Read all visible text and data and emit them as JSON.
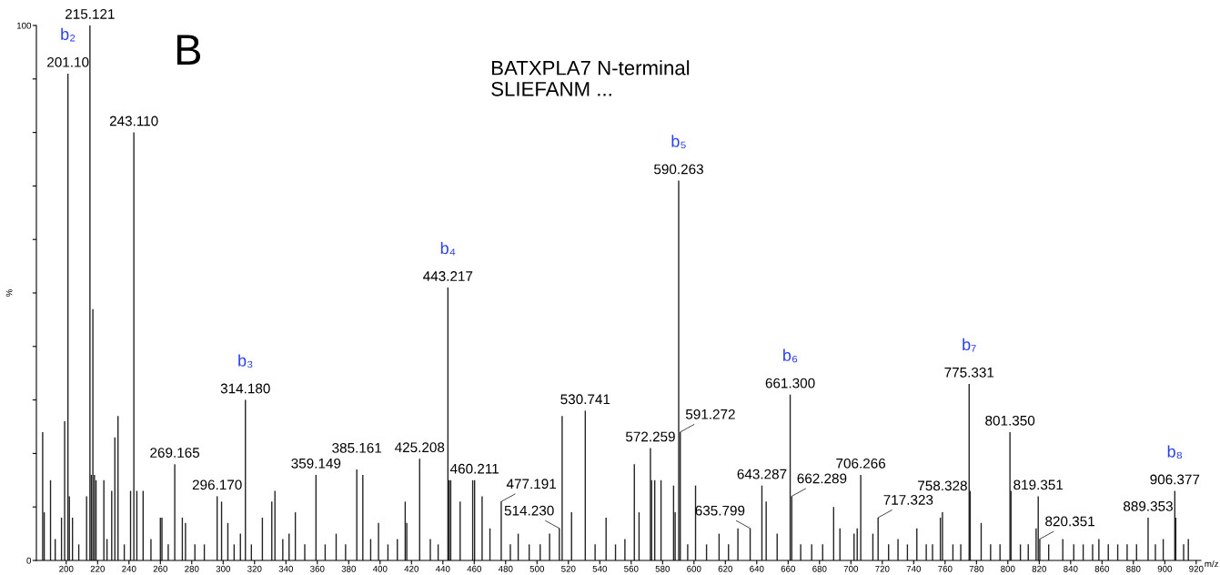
{
  "chart_data": {
    "type": "bar",
    "title": "BATXPLA7 N-terminal\nSLIEFANM ...",
    "xlabel": "m/z",
    "ylabel": "%",
    "color": "#222222",
    "x": [
      185,
      186,
      190,
      193,
      197,
      199,
      201.1,
      202,
      204,
      208,
      213,
      215.121,
      216,
      217,
      218,
      219,
      224,
      226,
      229,
      231,
      233,
      237,
      241,
      243.11,
      245,
      249,
      254,
      260,
      261,
      265,
      269.165,
      274,
      276,
      282,
      288,
      296.17,
      299,
      303,
      307,
      311,
      314.18,
      318,
      325,
      331,
      333,
      338,
      342,
      346,
      352,
      359.149,
      365,
      372,
      378,
      385.161,
      389,
      394,
      399,
      405,
      411,
      416,
      417,
      425.208,
      432,
      437,
      443.217,
      444,
      445,
      451,
      459,
      460.211,
      465,
      470,
      477.191,
      483,
      488,
      495,
      502,
      508,
      514.23,
      516,
      522,
      530.741,
      537,
      544,
      550,
      556,
      562,
      565,
      572.259,
      573,
      575,
      579,
      587,
      588,
      590.263,
      591.272,
      596,
      601,
      608,
      616,
      622,
      628,
      635.799,
      643.287,
      646,
      653,
      661.3,
      662.289,
      668,
      675,
      682,
      689,
      693,
      702,
      704,
      706.266,
      714,
      717.323,
      724,
      730,
      736,
      742,
      748,
      752,
      757,
      758.328,
      765,
      770,
      775.331,
      776,
      783,
      789,
      795,
      801.35,
      802,
      808,
      813,
      818,
      819.351,
      820.351,
      826,
      835,
      842,
      848,
      854,
      858,
      864,
      870,
      876,
      882,
      889.353,
      894,
      899,
      906.377,
      907,
      912,
      915
    ],
    "values": [
      24,
      9,
      15,
      4,
      8,
      26,
      91,
      12,
      8,
      3,
      12,
      100,
      16,
      47,
      16,
      15,
      15,
      4,
      13,
      23,
      27,
      3,
      13,
      80,
      13,
      13,
      4,
      8,
      8,
      3,
      18,
      8,
      7,
      3,
      3,
      12,
      11,
      7,
      3,
      5,
      30,
      3,
      8,
      11,
      13,
      4,
      5,
      9,
      3,
      16,
      3,
      5,
      3,
      17,
      16,
      4,
      7,
      3,
      4,
      11,
      7,
      19,
      4,
      3,
      51,
      15,
      15,
      11,
      15,
      15,
      12,
      6,
      11,
      3,
      5,
      3,
      3,
      5,
      6,
      27,
      9,
      28,
      3,
      8,
      3,
      4,
      18,
      9,
      21,
      15,
      15,
      15,
      14,
      9,
      71,
      24,
      3,
      14,
      3,
      5,
      3,
      6,
      6,
      14,
      11,
      5,
      31,
      12,
      3,
      3,
      3,
      10,
      6,
      5,
      6,
      16,
      5,
      8,
      3,
      4,
      3,
      6,
      3,
      3,
      8,
      9,
      3,
      3,
      33,
      13,
      7,
      3,
      3,
      24,
      13,
      3,
      3,
      6,
      12,
      4,
      3,
      4,
      3,
      3,
      3,
      4,
      3,
      3,
      3,
      3,
      8,
      3,
      4,
      13,
      8,
      3,
      4
    ],
    "xlim": [
      181,
      923
    ],
    "xticks": [
      200,
      220,
      240,
      260,
      280,
      300,
      320,
      340,
      360,
      380,
      400,
      420,
      440,
      460,
      480,
      500,
      520,
      540,
      560,
      580,
      600,
      620,
      640,
      660,
      680,
      700,
      720,
      740,
      760,
      780,
      800,
      820,
      840,
      860,
      880,
      900,
      920
    ],
    "ylim": [
      0,
      100
    ],
    "yticks": [
      0,
      {
        "value": 10,
        "label": null
      },
      {
        "value": 20,
        "label": null
      },
      {
        "value": 30,
        "label": null
      },
      {
        "value": 40,
        "label": null
      },
      {
        "value": 50,
        "label": null
      },
      {
        "value": 60,
        "label": null
      },
      {
        "value": 70,
        "label": null
      },
      {
        "value": 80,
        "label": null
      },
      {
        "value": 90,
        "label": null
      },
      100
    ],
    "annotations": [
      "B",
      {
        "text": "b₂",
        "x": 201.1,
        "y": 91
      },
      {
        "text": "201.10",
        "x": 201.1,
        "y": 91
      },
      {
        "text": "215.121",
        "x": 215.121,
        "y": 100
      },
      {
        "text": "243.110",
        "x": 243.11,
        "y": 80
      },
      {
        "text": "269.165",
        "x": 269.165,
        "y": 18
      },
      {
        "text": "296.170",
        "x": 296.17,
        "y": 12
      },
      {
        "text": "b₃",
        "x": 314.18,
        "y": 30
      },
      {
        "text": "314.180",
        "x": 314.18,
        "y": 30
      },
      {
        "text": "359.149",
        "x": 359.149,
        "y": 16
      },
      {
        "text": "385.161",
        "x": 385.161,
        "y": 17
      },
      {
        "text": "425.208",
        "x": 425.208,
        "y": 19
      },
      {
        "text": "b₄",
        "x": 443.217,
        "y": 51
      },
      {
        "text": "443.217",
        "x": 443.217,
        "y": 51
      },
      {
        "text": "460.211",
        "x": 460.211,
        "y": 15
      },
      {
        "text": "477.191",
        "x": 477.191,
        "y": 11
      },
      {
        "text": "514.230",
        "x": 514.23,
        "y": 6
      },
      {
        "text": "530.741",
        "x": 530.741,
        "y": 28
      },
      {
        "text": "572.259",
        "x": 572.259,
        "y": 21
      },
      {
        "text": "b₅",
        "x": 590.263,
        "y": 71
      },
      {
        "text": "590.263",
        "x": 590.263,
        "y": 71
      },
      {
        "text": "591.272",
        "x": 591.272,
        "y": 24
      },
      {
        "text": "635.799",
        "x": 635.799,
        "y": 6
      },
      {
        "text": "643.287",
        "x": 643.287,
        "y": 14
      },
      {
        "text": "b₆",
        "x": 661.3,
        "y": 31
      },
      {
        "text": "661.300",
        "x": 661.3,
        "y": 31
      },
      {
        "text": "662.289",
        "x": 662.289,
        "y": 12
      },
      {
        "text": "706.266",
        "x": 706.266,
        "y": 16
      },
      {
        "text": "717.323",
        "x": 717.323,
        "y": 8
      },
      {
        "text": "758.328",
        "x": 758.328,
        "y": 9
      },
      {
        "text": "b₇",
        "x": 775.331,
        "y": 33
      },
      {
        "text": "775.331",
        "x": 775.331,
        "y": 33
      },
      {
        "text": "801.350",
        "x": 801.35,
        "y": 24
      },
      {
        "text": "819.351",
        "x": 819.351,
        "y": 12
      },
      {
        "text": "820.351",
        "x": 820.351,
        "y": 4
      },
      {
        "text": "889.353",
        "x": 889.353,
        "y": 8
      },
      {
        "text": "b₈",
        "x": 906.377,
        "y": 13
      },
      {
        "text": "906.377",
        "x": 906.377,
        "y": 13
      }
    ]
  }
}
